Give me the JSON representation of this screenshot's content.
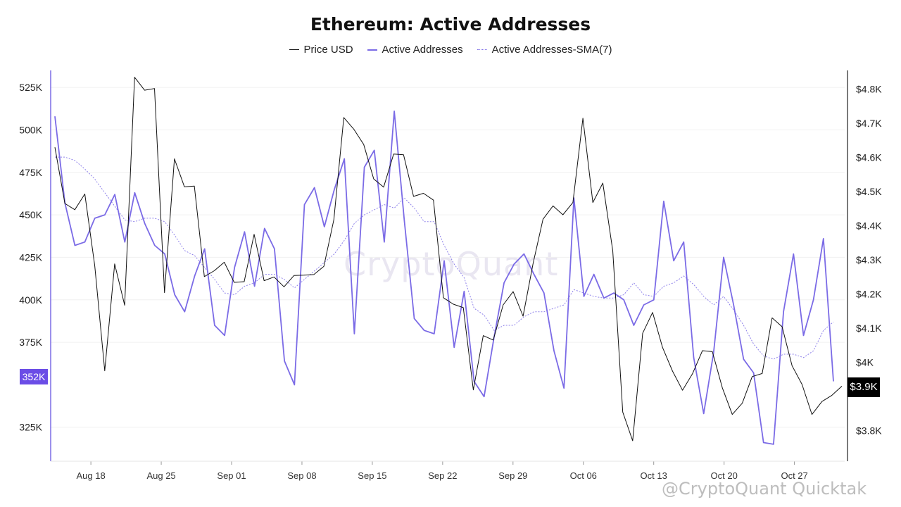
{
  "chart_data": {
    "type": "line",
    "title": "Ethereum: Active Addresses",
    "legend": [
      {
        "name": "Price USD",
        "color": "#111111",
        "style": "solid-thin"
      },
      {
        "name": "Active Addresses",
        "color": "#7b6be6",
        "style": "solid"
      },
      {
        "name": "Active Addresses-SMA(7)",
        "color": "#7b6be6",
        "style": "dotted"
      }
    ],
    "legend_position": "top-center",
    "x_ticks": [
      "Aug 18",
      "Aug 25",
      "Sep 01",
      "Sep 08",
      "Sep 15",
      "Sep 22",
      "Sep 29",
      "Oct 06",
      "Oct 13",
      "Oct 20",
      "Oct 27"
    ],
    "x_range": [
      "Aug 14",
      "Nov 1"
    ],
    "y_left": {
      "ticks": [
        "325K",
        "375K",
        "400K",
        "425K",
        "450K",
        "475K",
        "500K",
        "525K"
      ],
      "range": [
        305000,
        535000
      ]
    },
    "y_right": {
      "ticks": [
        "$3.8K",
        "$4K",
        "$4.1K",
        "$4.2K",
        "$4.3K",
        "$4.4K",
        "$4.5K",
        "$4.6K",
        "$4.7K",
        "$4.8K"
      ],
      "range": [
        3710,
        4855
      ]
    },
    "grid": "horizontal",
    "current_labels": {
      "left": "352K",
      "right": "$3.9K"
    },
    "series": [
      {
        "name": "Active Addresses",
        "values": [
          508000,
          457000,
          432000,
          434000,
          448000,
          450000,
          462000,
          434000,
          463000,
          445000,
          432000,
          427000,
          403000,
          393000,
          414000,
          430000,
          385000,
          379000,
          419000,
          440000,
          408000,
          442000,
          430000,
          364000,
          350000,
          456000,
          466000,
          443000,
          465000,
          483000,
          380000,
          478000,
          488000,
          434000,
          511000,
          447000,
          389000,
          382000,
          380000,
          423000,
          372000,
          405000,
          352000,
          343000,
          378000,
          410000,
          421000,
          427000,
          415000,
          404000,
          370000,
          348000,
          460000,
          402000,
          415000,
          401000,
          404000,
          400000,
          385000,
          397000,
          400000,
          458000,
          423000,
          434000,
          366000,
          333000,
          369000,
          425000,
          397000,
          365000,
          357000,
          316000,
          315000,
          393000,
          427000,
          379000,
          400000,
          436000,
          352000
        ]
      },
      {
        "name": "Active Addresses-SMA(7)",
        "values": [
          484000,
          484000,
          482000,
          477000,
          471000,
          463000,
          455000,
          447000,
          446000,
          448000,
          448000,
          446000,
          438000,
          429000,
          426000,
          419000,
          412000,
          404000,
          403000,
          408000,
          410000,
          415000,
          415000,
          412000,
          407000,
          412000,
          417000,
          422000,
          427000,
          435000,
          445000,
          450000,
          453000,
          456000,
          454000,
          460000,
          454000,
          446000,
          446000,
          432000,
          421000,
          413000,
          395000,
          391000,
          382000,
          385000,
          385000,
          390000,
          393000,
          393000,
          395000,
          397000,
          406000,
          404000,
          402000,
          401000,
          401000,
          403000,
          410000,
          403000,
          402000,
          408000,
          410000,
          414000,
          409000,
          402000,
          397000,
          402000,
          394000,
          385000,
          374000,
          367000,
          365000,
          368000,
          368000,
          366000,
          370000,
          382000,
          387000
        ]
      },
      {
        "name": "Price USD",
        "values": [
          4630,
          4465,
          4447,
          4493,
          4283,
          3975,
          4288,
          4167,
          4835,
          4797,
          4802,
          4204,
          4596,
          4514,
          4516,
          4251,
          4268,
          4293,
          4234,
          4236,
          4375,
          4239,
          4250,
          4221,
          4254,
          4255,
          4257,
          4281,
          4418,
          4717,
          4683,
          4638,
          4537,
          4513,
          4610,
          4608,
          4486,
          4495,
          4475,
          4189,
          4170,
          4160,
          3919,
          4078,
          4065,
          4168,
          4207,
          4135,
          4289,
          4419,
          4458,
          4432,
          4468,
          4715,
          4468,
          4525,
          4327,
          3854,
          3770,
          4085,
          4146,
          4043,
          3974,
          3918,
          3966,
          4034,
          4031,
          3925,
          3847,
          3880,
          3958,
          3967,
          4130,
          4104,
          3990,
          3935,
          3847,
          3885,
          3903,
          3930
        ]
      }
    ]
  },
  "watermark": "CryptoQuant",
  "credit": "@CryptoQuant Quicktak"
}
